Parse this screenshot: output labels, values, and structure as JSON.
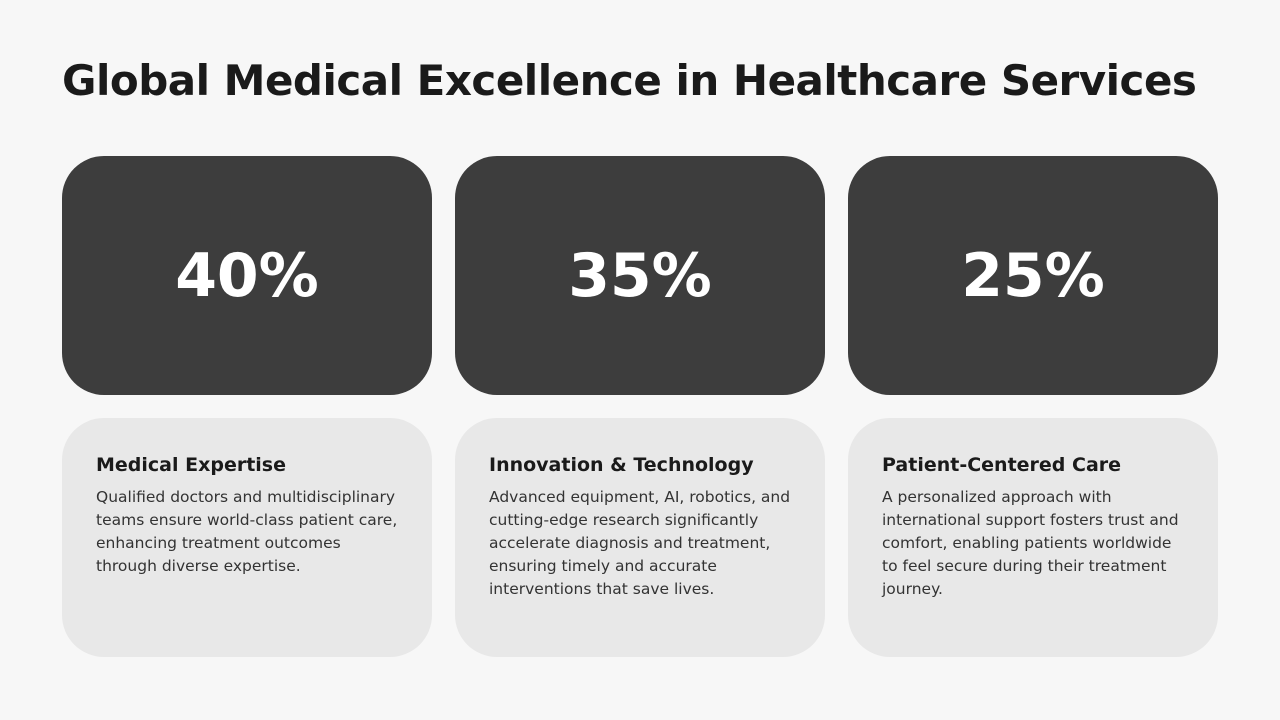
{
  "title": "Global Medical Excellence in Healthcare Services",
  "cards": [
    {
      "stat": "40%",
      "heading": "Medical Expertise",
      "text": "Qualified doctors and multidisciplinary teams ensure world-class patient care, enhancing treatment outcomes through diverse expertise."
    },
    {
      "stat": "35%",
      "heading": "Innovation & Technology",
      "text": "Advanced equipment, AI, robotics, and cutting-edge research significantly accelerate diagnosis and treatment, ensuring timely and accurate interventions that save lives."
    },
    {
      "stat": "25%",
      "heading": "Patient-Centered Care",
      "text": "A personalized approach with international support fosters trust and comfort, enabling patients worldwide to feel secure during their treatment journey."
    }
  ]
}
